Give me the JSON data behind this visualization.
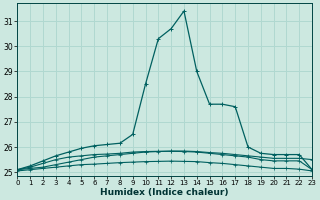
{
  "xlabel": "Humidex (Indice chaleur)",
  "x_ticks": [
    0,
    1,
    2,
    3,
    4,
    5,
    6,
    7,
    8,
    9,
    10,
    11,
    12,
    13,
    14,
    15,
    16,
    17,
    18,
    19,
    20,
    21,
    22,
    23
  ],
  "xlim": [
    0,
    23
  ],
  "ylim": [
    24.85,
    31.7
  ],
  "yticks": [
    25,
    26,
    27,
    28,
    29,
    30,
    31
  ],
  "bg_color": "#cce8e0",
  "grid_color": "#b0d8d0",
  "line_color": "#006060",
  "series": [
    [
      25.1,
      25.15,
      25.2,
      25.3,
      25.4,
      25.5,
      25.6,
      25.65,
      25.7,
      25.75,
      25.8,
      25.82,
      25.84,
      25.84,
      25.82,
      25.78,
      25.75,
      25.7,
      25.65,
      25.6,
      25.55,
      25.55,
      25.55,
      25.5
    ],
    [
      25.05,
      25.1,
      25.15,
      25.2,
      25.25,
      25.3,
      25.32,
      25.35,
      25.38,
      25.4,
      25.42,
      25.43,
      25.44,
      25.43,
      25.42,
      25.38,
      25.35,
      25.3,
      25.25,
      25.2,
      25.15,
      25.15,
      25.12,
      25.05
    ],
    [
      25.1,
      25.2,
      25.35,
      25.5,
      25.6,
      25.65,
      25.7,
      25.72,
      25.75,
      25.8,
      25.82,
      25.83,
      25.83,
      25.82,
      25.8,
      25.75,
      25.7,
      25.65,
      25.6,
      25.5,
      25.45,
      25.45,
      25.45,
      25.1
    ],
    [
      25.1,
      25.25,
      25.45,
      25.65,
      25.8,
      25.95,
      26.05,
      26.1,
      26.15,
      26.5,
      28.5,
      30.3,
      30.7,
      31.4,
      29.0,
      27.7,
      27.7,
      27.6,
      26.0,
      25.75,
      25.7,
      25.7,
      25.7,
      25.1
    ]
  ]
}
